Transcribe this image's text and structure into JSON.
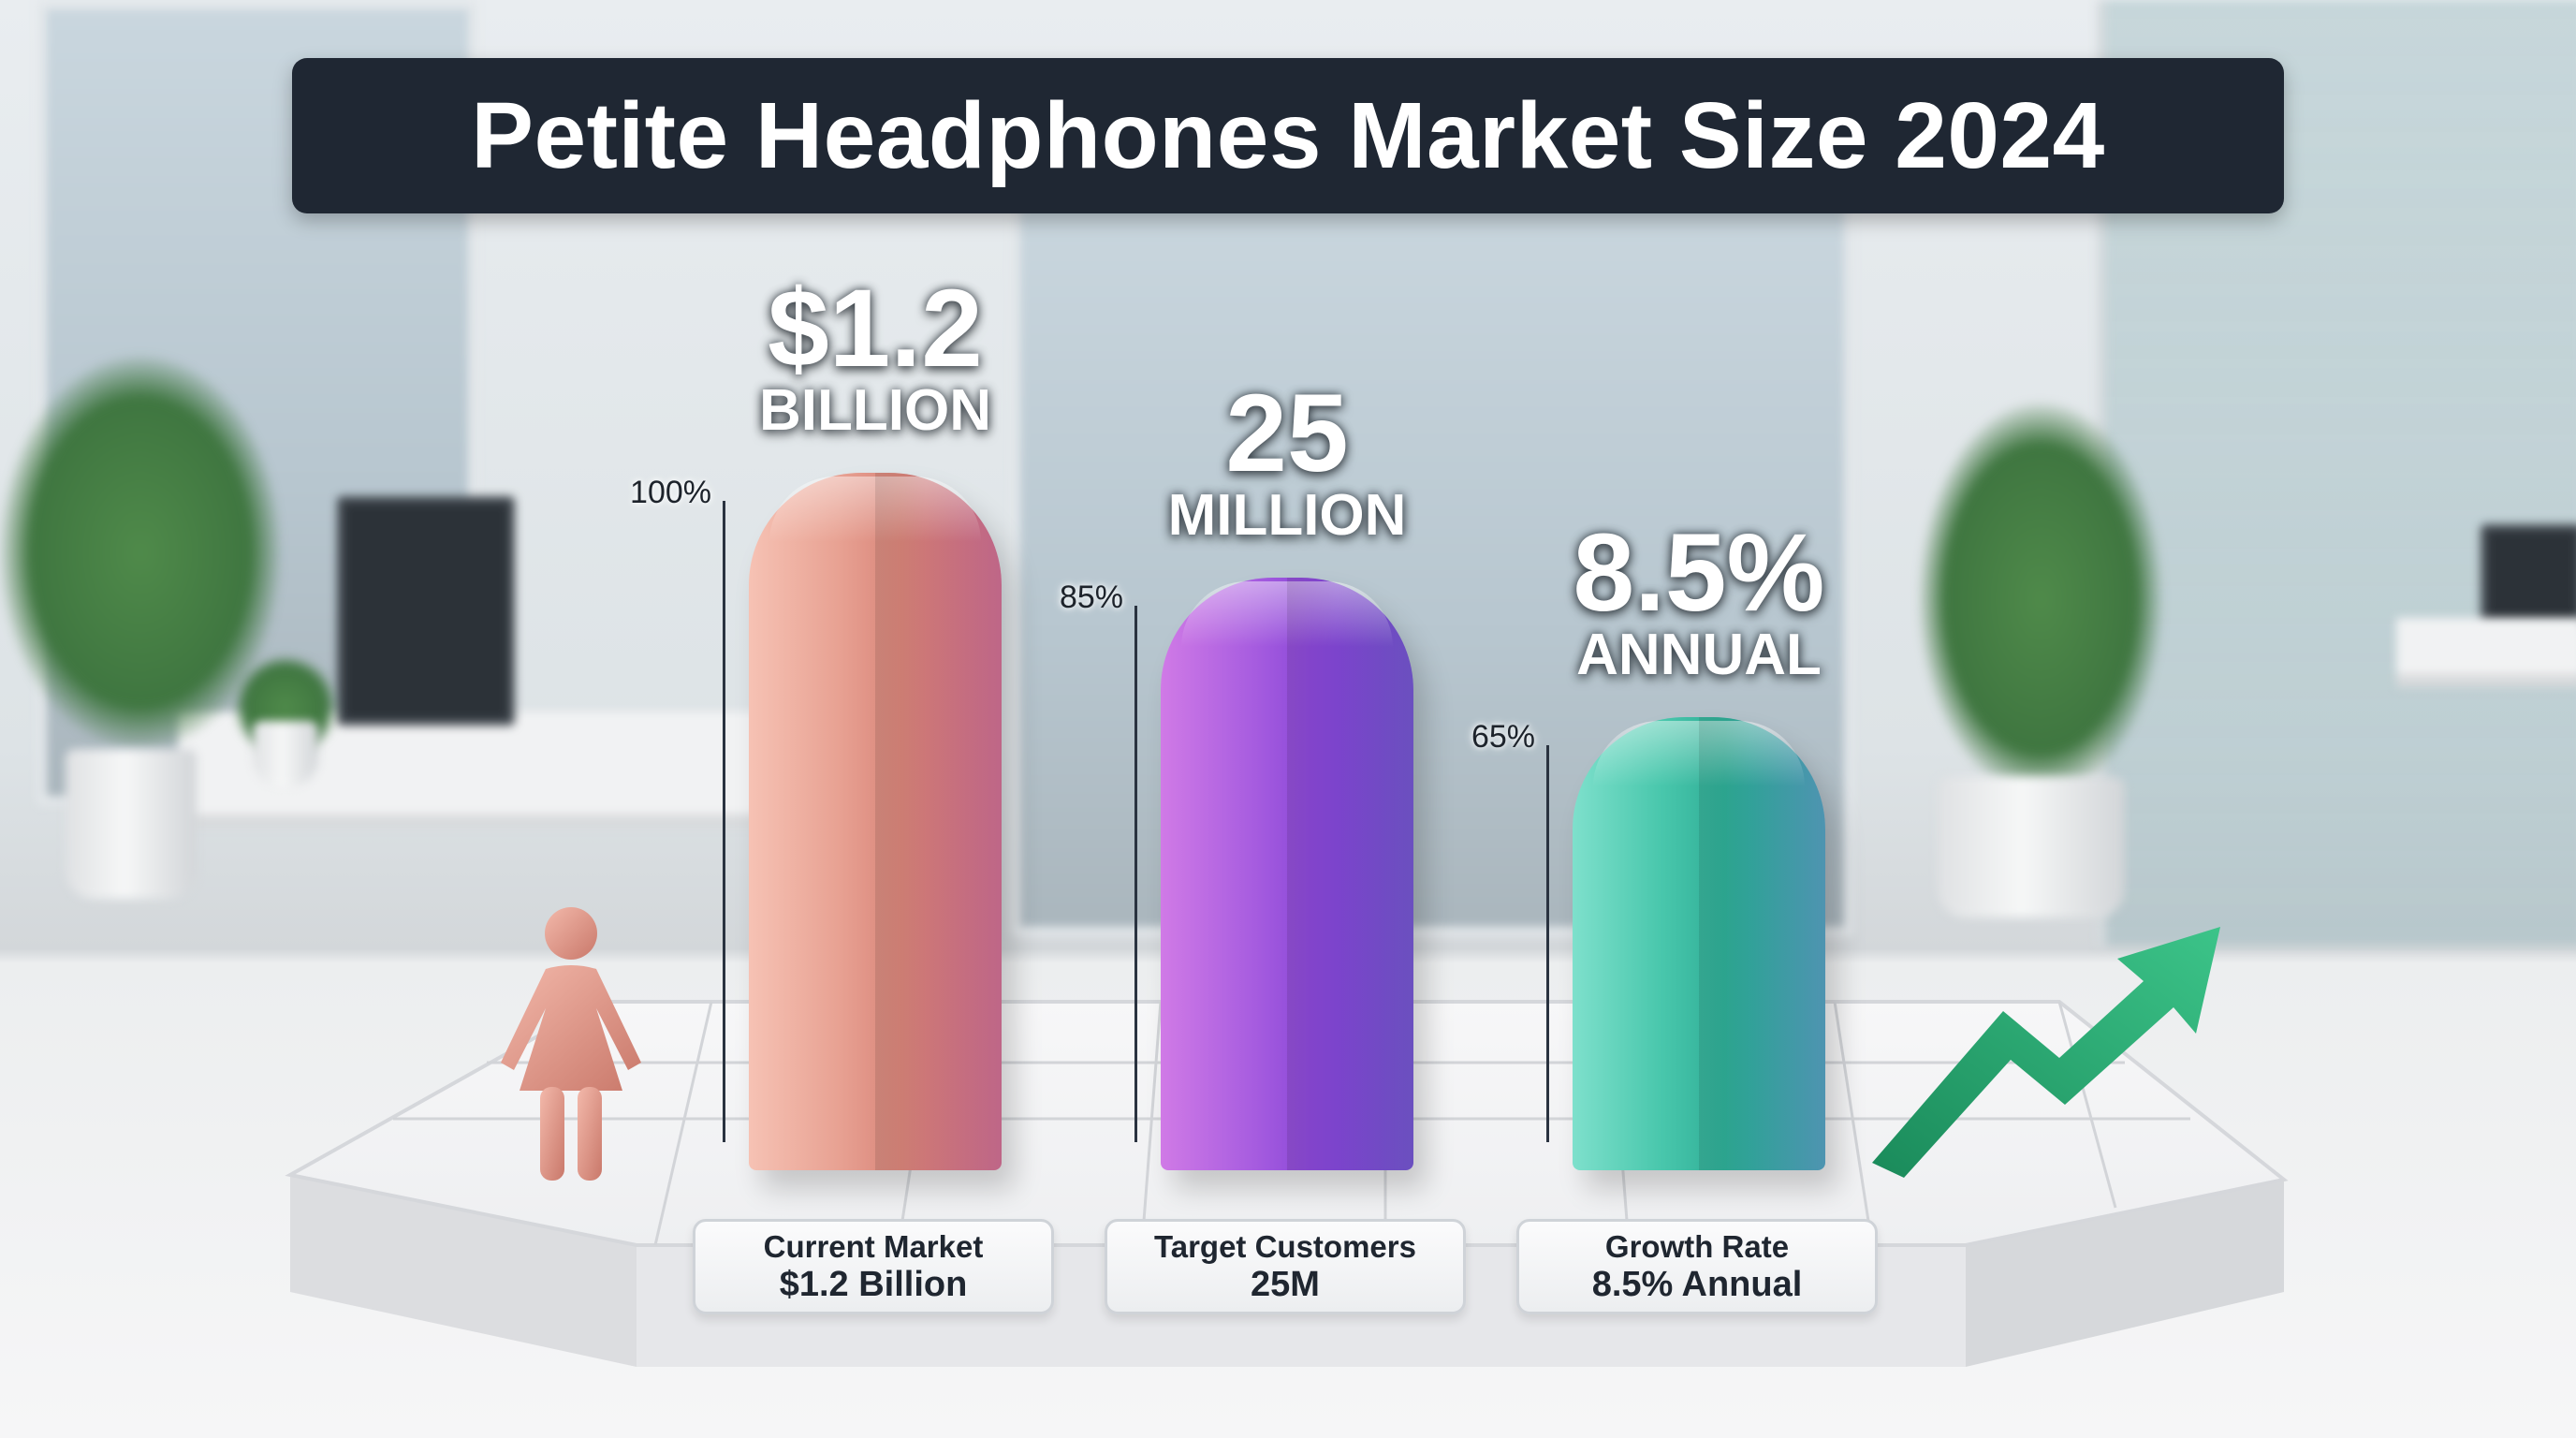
{
  "title": "Petite Headphones Market Size 2024",
  "colors": {
    "title_bg": "#1f2733",
    "bar_1": "#e59a8a",
    "bar_2": "#9f52d8",
    "bar_3": "#3dbfa4",
    "woman_figure": "#e3a091",
    "growth_arrow": "#22a06b"
  },
  "icons": [
    "woman-figure-icon",
    "growth-arrow-icon"
  ],
  "chart_data": {
    "type": "bar",
    "title": "Petite Headphones Market Size 2024",
    "categories": [
      "Current Market $1.2 Billion",
      "Target Customers 25M",
      "Growth Rate 8.5% Annual"
    ],
    "values": [
      100,
      85,
      65
    ],
    "ylim": [
      0,
      100
    ],
    "grid": false,
    "bars": [
      {
        "value": 100,
        "pct_label": "100%",
        "headline": "$1.2",
        "headline_unit": "BILLION",
        "card_line1": "Current Market",
        "card_line2": "$1.2 Billion"
      },
      {
        "value": 85,
        "pct_label": "85%",
        "headline": "25",
        "headline_unit": "MILLION",
        "card_line1": "Target Customers",
        "card_line2": "25M"
      },
      {
        "value": 65,
        "pct_label": "65%",
        "headline": "8.5%",
        "headline_unit": "ANNUAL",
        "card_line1": "Growth Rate",
        "card_line2": "8.5% Annual"
      }
    ]
  }
}
